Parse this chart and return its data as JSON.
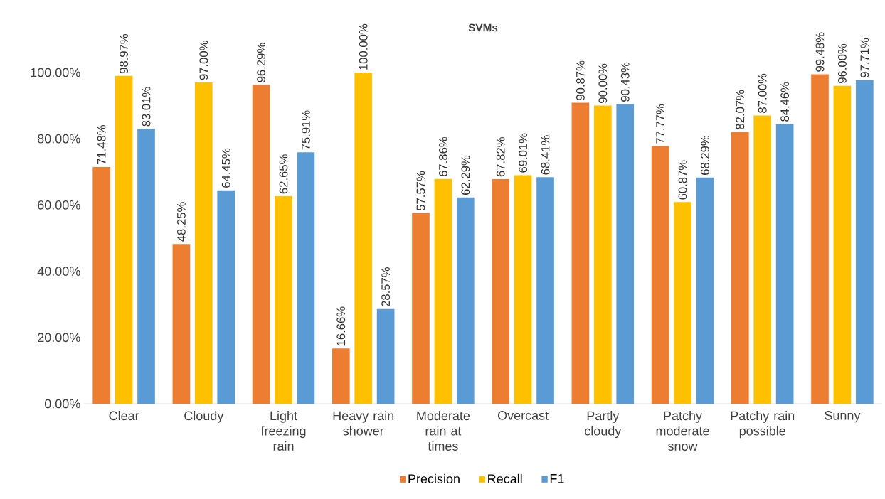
{
  "chart_data": {
    "type": "bar",
    "title": "SVMs",
    "categories": [
      "Clear",
      "Cloudy",
      "Light freezing rain",
      "Heavy rain shower",
      "Moderate rain at times",
      "Overcast",
      "Partly cloudy",
      "Patchy moderate snow",
      "Patchy rain possible",
      "Sunny"
    ],
    "series": [
      {
        "name": "Precision",
        "color": "#ed7d31",
        "values": [
          71.48,
          48.25,
          96.29,
          16.66,
          57.57,
          67.82,
          90.87,
          77.77,
          82.07,
          99.48
        ],
        "value_labels": [
          "71.48%",
          "48.25%",
          "96.29%",
          "16.66%",
          "57.57%",
          "67.82%",
          "90.87%",
          "77.77%",
          "82.07%",
          "99.48%"
        ]
      },
      {
        "name": "Recall",
        "color": "#ffc000",
        "values": [
          98.97,
          97.0,
          62.65,
          100.0,
          67.86,
          69.01,
          90.0,
          60.87,
          87.0,
          96.0
        ],
        "value_labels": [
          "98.97%",
          "97.00%",
          "62.65%",
          "100.00%",
          "67.86%",
          "69.01%",
          "90.00%",
          "60.87%",
          "87.00%",
          "96.00%"
        ]
      },
      {
        "name": "F1",
        "color": "#5b9bd5",
        "values": [
          83.01,
          64.45,
          75.91,
          28.57,
          62.29,
          68.41,
          90.43,
          68.29,
          84.46,
          97.71
        ],
        "value_labels": [
          "83.01%",
          "64.45%",
          "75.91%",
          "28.57%",
          "62.29%",
          "68.41%",
          "90.43%",
          "68.29%",
          "84.46%",
          "97.71%"
        ]
      }
    ],
    "ylim": [
      0,
      100
    ],
    "yticks": [
      {
        "value": 0,
        "label": "0.00%"
      },
      {
        "value": 20,
        "label": "20.00%"
      },
      {
        "value": 40,
        "label": "40.00%"
      },
      {
        "value": 60,
        "label": "60.00%"
      },
      {
        "value": 80,
        "label": "80.00%"
      },
      {
        "value": 100,
        "label": "100.00%"
      }
    ],
    "grid": false,
    "legend": "bottom"
  }
}
